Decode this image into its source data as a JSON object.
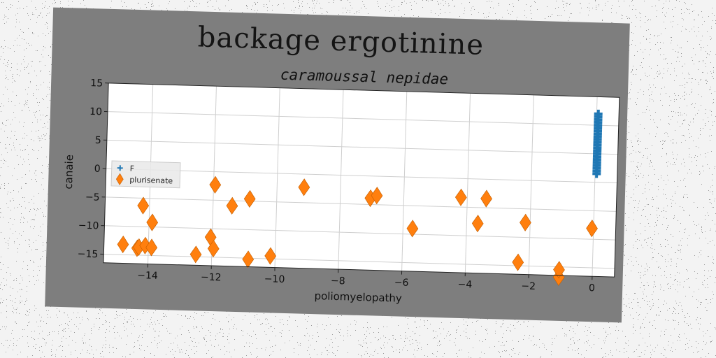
{
  "figure": {
    "suptitle": "backage ergotinine",
    "background": "#7e7e7e"
  },
  "chart_data": {
    "type": "scatter",
    "title": "caramoussal nepidae",
    "xlabel": "poliomyelopathy",
    "ylabel": "canaie",
    "xlim": [
      -15.4,
      0.7
    ],
    "ylim": [
      -16.5,
      15
    ],
    "xticks": [
      -14,
      -12,
      -10,
      -8,
      -6,
      -4,
      -2,
      0
    ],
    "yticks": [
      -15,
      -10,
      -5,
      0,
      5,
      10,
      15
    ],
    "grid": true,
    "legend_position": "center-left",
    "series": [
      {
        "name": "F",
        "marker": "plus",
        "color": "#1f77b4",
        "x": [
          0.05,
          0.05,
          0.05,
          0.05,
          0.05,
          0.05,
          0.05,
          0.05,
          0.05,
          0.05,
          0.05,
          0.05,
          0.05,
          0.05,
          0.05,
          0.05,
          0.05,
          0.05,
          0.05,
          0.05,
          0.05,
          0.05
        ],
        "y": [
          1.5,
          2,
          2.5,
          3,
          3.5,
          4,
          4.5,
          5,
          5.5,
          6,
          6.5,
          7,
          7.5,
          8,
          8.5,
          9,
          9.5,
          10,
          10.5,
          11,
          11.5,
          12
        ]
      },
      {
        "name": "plurisenate",
        "marker": "diamond",
        "color": "#ff7f0e",
        "x": [
          -14.8,
          -14.35,
          -14.2,
          -14.3,
          -14.1,
          -13.9,
          -13.9,
          -12.5,
          -12.05,
          -11.95,
          -11.95,
          -11.4,
          -10.85,
          -10.85,
          -10.15,
          -9.15,
          -7.05,
          -6.85,
          -5.7,
          -4.2,
          -3.65,
          -3.4,
          -2.35,
          -2.15,
          -1.05,
          -1.05,
          -0.05
        ],
        "y": [
          -13.2,
          -13.8,
          -6.3,
          -13.6,
          -13.3,
          -13.6,
          -9.2,
          -14.6,
          -11.5,
          -13.5,
          -2.3,
          -5.9,
          -4.6,
          -15.2,
          -14.5,
          -2.3,
          -3.9,
          -3.4,
          -9,
          -3.3,
          -7.8,
          -3.4,
          -14.4,
          -7.4,
          -16.8,
          -15.5,
          -8.1
        ]
      }
    ]
  }
}
